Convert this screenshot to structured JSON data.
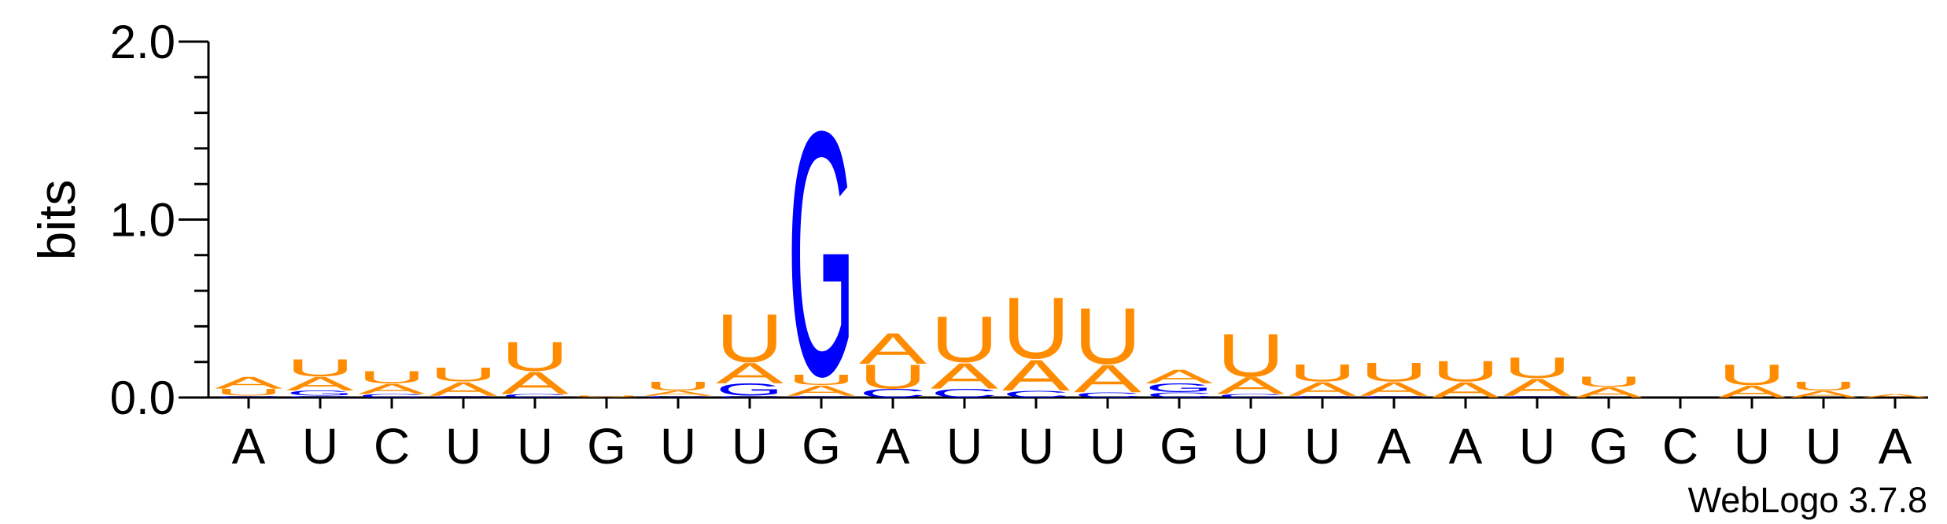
{
  "chart_data": {
    "type": "logo",
    "ylabel": "bits",
    "footer": "WebLogo 3.7.8",
    "categories": [
      "A",
      "U",
      "C",
      "U",
      "U",
      "G",
      "U",
      "U",
      "G",
      "A",
      "U",
      "U",
      "U",
      "G",
      "U",
      "U",
      "A",
      "A",
      "U",
      "G",
      "C",
      "U",
      "U",
      "A"
    ],
    "ylim": [
      0,
      2
    ],
    "yticks": [
      {
        "value": 0,
        "label": "0.0"
      },
      {
        "value": 1,
        "label": "1.0"
      },
      {
        "value": 2,
        "label": "2.0"
      }
    ],
    "yminorticks": [
      0.2,
      0.4,
      0.6,
      0.8,
      1.2,
      1.4,
      1.6,
      1.8
    ],
    "series": [
      {
        "name": "A",
        "color": "#ff8c00",
        "values": [
          0.07,
          0.08,
          0.06,
          0.08,
          0.13,
          0.005,
          0.03,
          0.12,
          0.06,
          0.18,
          0.15,
          0.18,
          0.16,
          0.08,
          0.1,
          0.08,
          0.08,
          0.09,
          0.1,
          0.06,
          0,
          0.07,
          0.04,
          0.02
        ]
      },
      {
        "name": "C",
        "color": "#0000ff",
        "values": [
          0.01,
          0.01,
          0.02,
          0.01,
          0.02,
          0,
          0.01,
          0.01,
          0.01,
          0.05,
          0.05,
          0.04,
          0.03,
          0.03,
          0.02,
          0.01,
          0.01,
          0,
          0.01,
          0,
          0,
          0,
          0,
          0
        ]
      },
      {
        "name": "G",
        "color": "#0000ff",
        "values": [
          0,
          0.03,
          0,
          0,
          0,
          0,
          0,
          0.07,
          1.43,
          0,
          0,
          0,
          0,
          0.05,
          0,
          0,
          0,
          0,
          0,
          0,
          0,
          0,
          0,
          0
        ]
      },
      {
        "name": "U",
        "color": "#ff8c00",
        "values": [
          0.04,
          0.1,
          0.07,
          0.08,
          0.17,
          0.005,
          0.05,
          0.28,
          0.06,
          0.14,
          0.27,
          0.36,
          0.33,
          0,
          0.25,
          0.1,
          0.11,
          0.12,
          0.12,
          0.06,
          0,
          0.12,
          0.05,
          0
        ]
      }
    ]
  }
}
